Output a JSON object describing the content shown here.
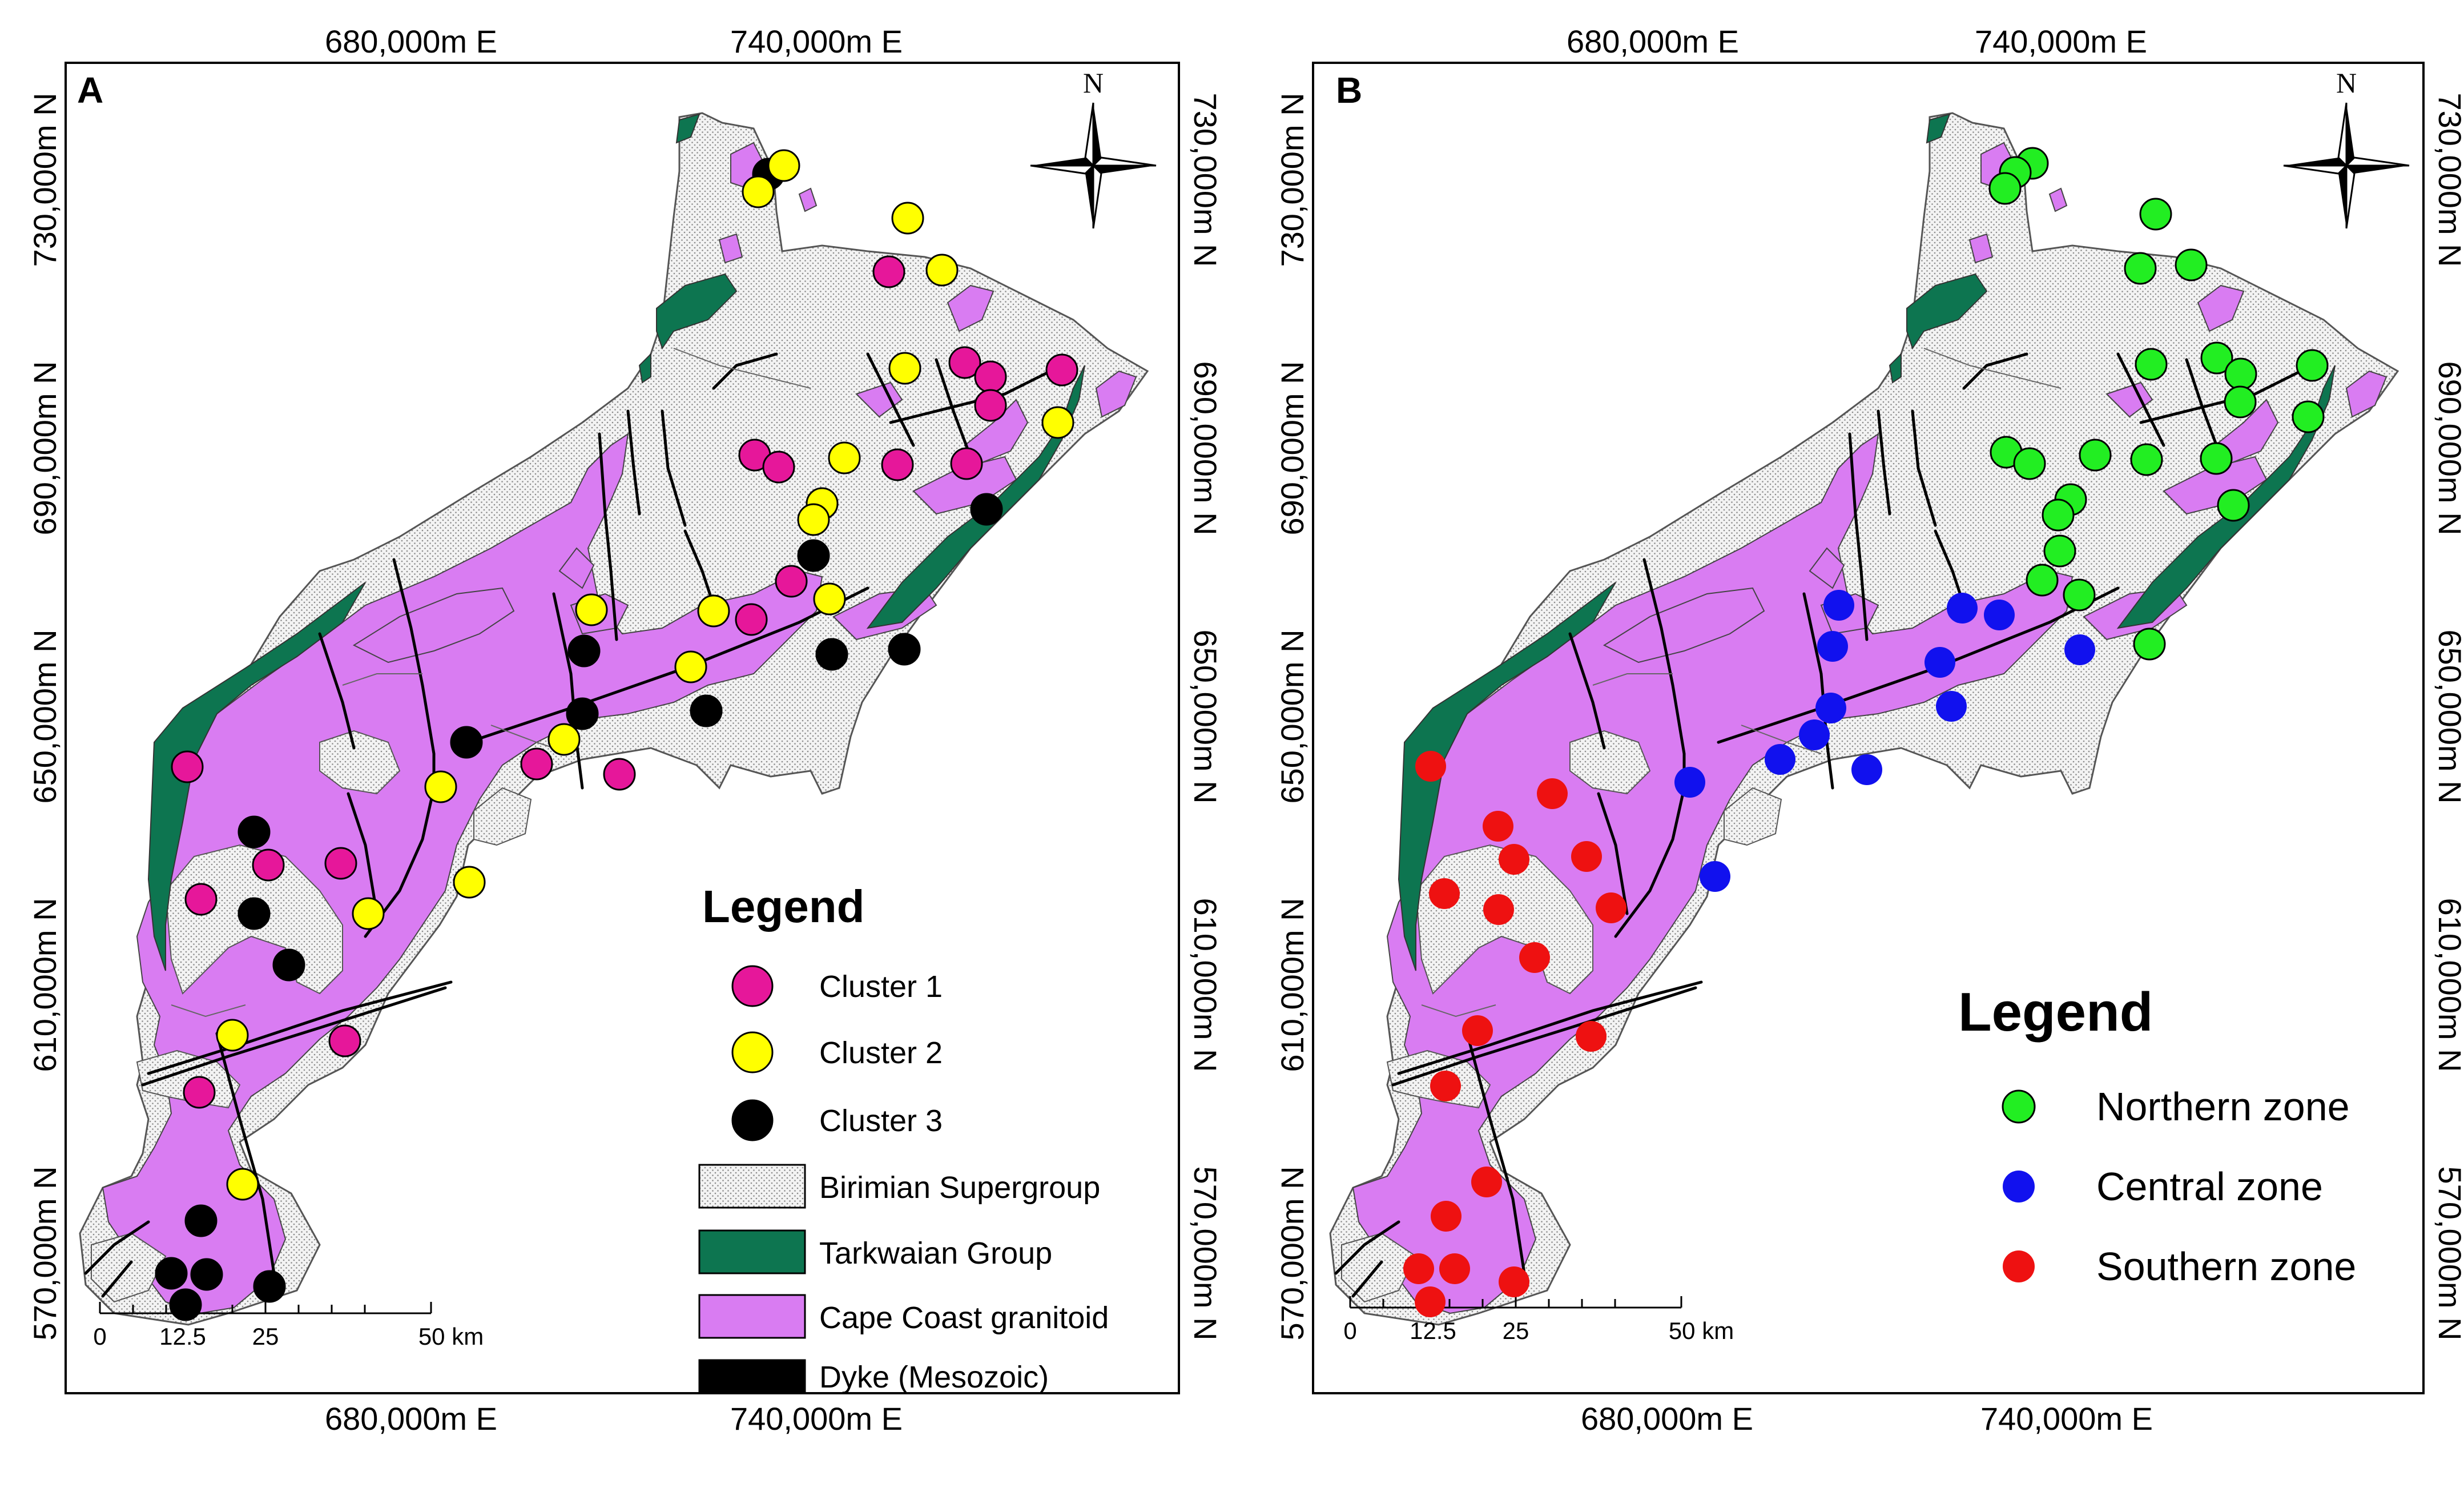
{
  "colors": {
    "birimian": "#ececec",
    "tarkwaian": "#0d7550",
    "granitoid": "#d97cf2",
    "dyke": "#000000",
    "cluster1": "#e6179a",
    "cluster2": "#ffff00",
    "cluster3": "#000000",
    "northern": "#22ee22",
    "central": "#1111ee",
    "southern": "#ee1111"
  },
  "panels": [
    {
      "id": "A",
      "letter": "A",
      "top_ticks": [
        "680,000m E",
        "740,000m E"
      ],
      "bottom_ticks": [
        "680,000m E",
        "740,000m E"
      ],
      "left_ticks": [
        "730,000m N",
        "690,000m N",
        "650,000m N",
        "610,000m N",
        "570,000m N"
      ],
      "right_ticks": [
        "730,000m N",
        "690,000m N",
        "650,000m N",
        "610,000m N",
        "570,000m N"
      ],
      "north_label": "N",
      "scale_labels": [
        "0",
        "12.5",
        "25",
        "50 km"
      ],
      "legend": {
        "title": "Legend",
        "items": [
          {
            "label": "Cluster 1",
            "symbol": "circle",
            "color_key": "cluster1"
          },
          {
            "label": "Cluster 2",
            "symbol": "circle",
            "color_key": "cluster2"
          },
          {
            "label": "Cluster 3",
            "symbol": "circle",
            "color_key": "cluster3"
          },
          {
            "label": "Birimian Supergroup",
            "symbol": "box",
            "color_key": "birimian"
          },
          {
            "label": "Tarkwaian Group",
            "symbol": "box",
            "color_key": "tarkwaian"
          },
          {
            "label": "Cape Coast granitoid",
            "symbol": "box",
            "color_key": "granitoid"
          },
          {
            "label": "Dyke (Mesozoic)",
            "symbol": "box",
            "color_key": "dyke"
          }
        ]
      }
    },
    {
      "id": "B",
      "letter": "B",
      "top_ticks": [
        "680,000m E",
        "740,000m E"
      ],
      "bottom_ticks": [
        "680,000m E",
        "740,000m E"
      ],
      "left_ticks": [
        "730,000m N",
        "690,000m N",
        "650,000m N",
        "610,000m N",
        "570,000m N"
      ],
      "right_ticks": [
        "730,000m N",
        "690,000m N",
        "650,000m N",
        "610,000m N",
        "570,000m N"
      ],
      "north_label": "N",
      "scale_labels": [
        "0",
        "12.5",
        "25",
        "50 km"
      ],
      "legend": {
        "title": "Legend",
        "items": [
          {
            "label": "Northern zone",
            "symbol": "circle",
            "color_key": "northern"
          },
          {
            "label": "Central zone",
            "symbol": "circle",
            "color_key": "central"
          },
          {
            "label": "Southern zone",
            "symbol": "circle",
            "color_key": "southern"
          }
        ]
      }
    }
  ]
}
